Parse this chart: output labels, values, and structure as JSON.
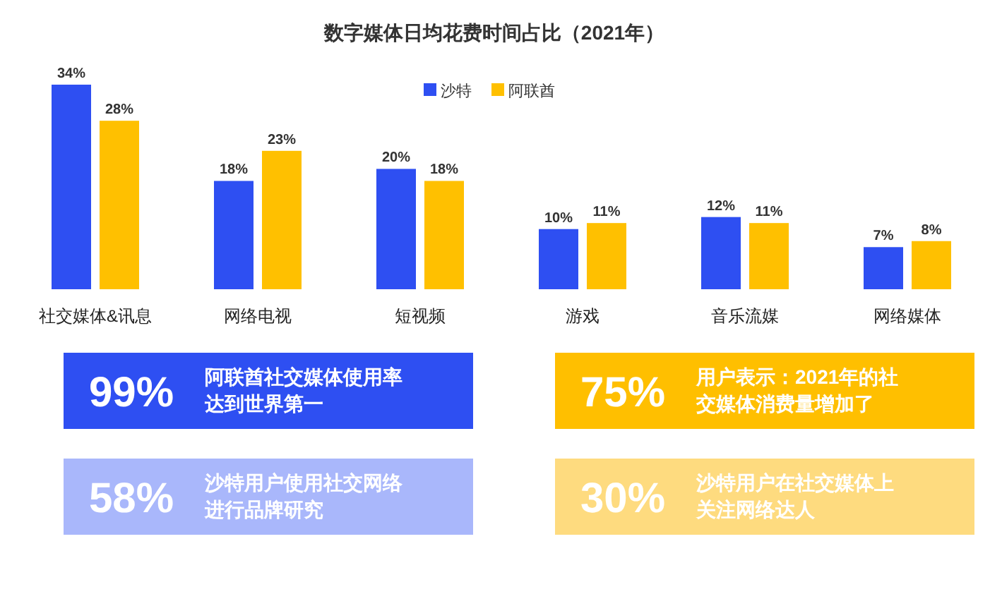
{
  "chart_data": [
    {
      "type": "bar",
      "title": "数字媒体日均花费时间占比（2021年）",
      "categories": [
        "社交媒体&讯息",
        "网络电视",
        "短视频",
        "游戏",
        "音乐流媒",
        "网络媒体"
      ],
      "series": [
        {
          "name": "沙特",
          "color": "#2e4ff2",
          "values": [
            34,
            18,
            20,
            10,
            12,
            7
          ],
          "value_labels": [
            "34%",
            "18%",
            "20%",
            "10%",
            "12%",
            "7%"
          ]
        },
        {
          "name": "阿联酋",
          "color": "#ffc000",
          "values": [
            28,
            23,
            18,
            11,
            11,
            8
          ],
          "value_labels": [
            "28%",
            "23%",
            "18%",
            "11%",
            "11%",
            "8%"
          ]
        }
      ],
      "legend": "top right"
    },
    {
      "type": "other",
      "colors": [
        "#2e4ff2",
        "#ffbf00",
        "#a9b7fb",
        "#fedb7f"
      ],
      "annotations": [
        "99%",
        "阿联酋社交媒体使用率达到世界第一",
        "75%",
        "用户表示：2021年的社交媒体消费量增加了",
        "58%",
        "沙特用户使用社交网络进行品牌研究",
        "30%",
        "沙特用户在社交媒体上关注网络达人"
      ]
    }
  ]
}
